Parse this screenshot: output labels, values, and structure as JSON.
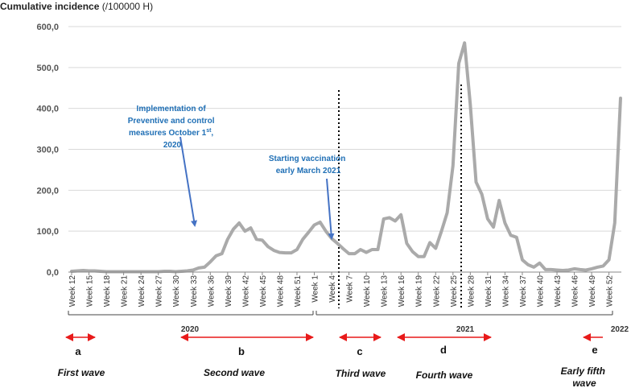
{
  "chart_data": {
    "type": "line",
    "title": "",
    "ylabel_bold": "Cumulative incidence",
    "ylabel_unit": " (/100000 H)",
    "xlabel": "",
    "ylim": [
      0,
      600
    ],
    "yticks": [
      "0,0",
      "100,0",
      "200,0",
      "300,0",
      "400,0",
      "500,0",
      "600,0"
    ],
    "grid": true,
    "week_labels": [
      "Week 12",
      "Week 15",
      "Week 18",
      "Week 21",
      "Week 24",
      "Week 27",
      "Week 30",
      "Week 33",
      "Week 36",
      "Week 39",
      "Week 42",
      "Week 45",
      "Week 48",
      "Week 51",
      "Week 1",
      "Week 4",
      "Week 7",
      "Week 10",
      "Week 13",
      "Week 16",
      "Week 19",
      "Week 22",
      "Week 25",
      "Week 28",
      "Week 31",
      "Week 34",
      "Week 37",
      "Week 40",
      "Week 43",
      "Week 46",
      "Week 49",
      "Week 52"
    ],
    "years": [
      "2020",
      "2021",
      "2022"
    ],
    "series": [
      {
        "name": "Cumulative incidence",
        "color": "#aaaaaa",
        "values": [
          2,
          3,
          4,
          3,
          3,
          2,
          1,
          1,
          1,
          1,
          1,
          1,
          1,
          1,
          1,
          1,
          2,
          2,
          1,
          2,
          3,
          5,
          10,
          12,
          25,
          40,
          45,
          80,
          105,
          120,
          100,
          108,
          80,
          78,
          62,
          53,
          48,
          47,
          47,
          55,
          80,
          97,
          115,
          122,
          100,
          82,
          70,
          57,
          45,
          45,
          55,
          48,
          55,
          55,
          130,
          133,
          125,
          140,
          70,
          50,
          38,
          38,
          72,
          58,
          100,
          145,
          260,
          510,
          560,
          410,
          220,
          190,
          130,
          110,
          175,
          120,
          90,
          85,
          30,
          18,
          12,
          22,
          6,
          6,
          5,
          4,
          5,
          8,
          6,
          5,
          8,
          12,
          15,
          30,
          120,
          425
        ]
      }
    ],
    "annotations": {
      "measures": "Implementation of Preventive and control measures October 1st, 2020",
      "measures_lines": [
        "Implementation of",
        "Preventive and control",
        "measures October 1",
        "st",
        ",",
        "2020"
      ],
      "vaccination_lines": [
        "Starting vaccination",
        "early March 2021"
      ]
    },
    "waves": [
      {
        "letter": "a",
        "name_lines": [
          "First wave"
        ]
      },
      {
        "letter": "b",
        "name_lines": [
          "Second wave"
        ]
      },
      {
        "letter": "c",
        "name_lines": [
          "Third wave"
        ]
      },
      {
        "letter": "d",
        "name_lines": [
          "Fourth wave"
        ]
      },
      {
        "letter": "e",
        "name_lines": [
          "Early fifth",
          "wave"
        ]
      }
    ],
    "colors": {
      "line": "#aaaaaa",
      "grid": "#d9d9d9",
      "arrow_blue": "#4472c4",
      "wave_arrow": "#e81a1a",
      "annotation_text": "#1f6fb5"
    }
  }
}
